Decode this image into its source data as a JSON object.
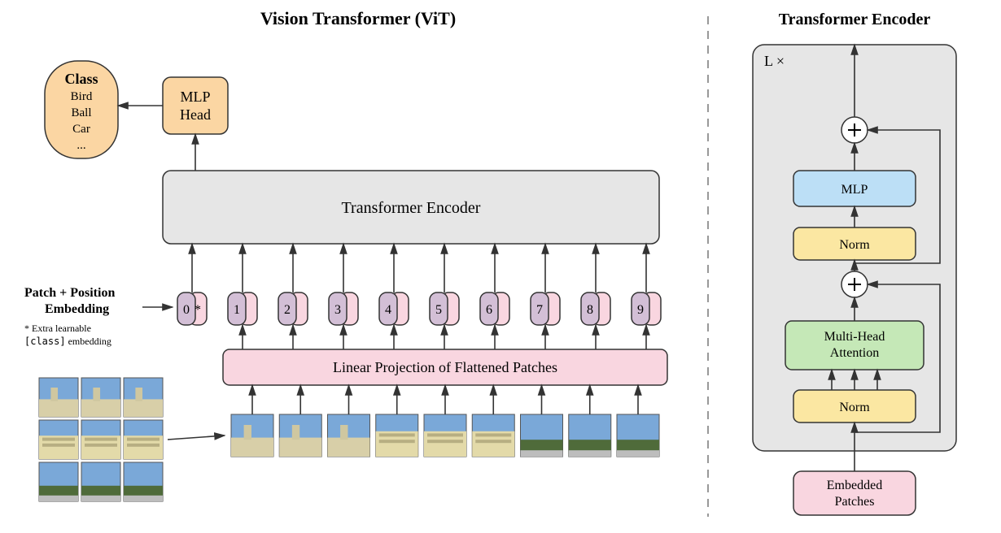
{
  "left": {
    "title": "Vision Transformer (ViT)",
    "class_box": {
      "title": "Class",
      "items": [
        "Bird",
        "Ball",
        "Car",
        "..."
      ],
      "fill": "#fbd6a3",
      "stroke": "#333333"
    },
    "mlp_head": {
      "line1": "MLP",
      "line2": "Head",
      "fill": "#fbd6a3",
      "stroke": "#333333"
    },
    "encoder_box": {
      "label": "Transformer Encoder",
      "fill": "#e6e6e6",
      "stroke": "#333333"
    },
    "patch_embed_label": {
      "line1": "Patch + Position",
      "line2": "Embedding",
      "footnote1": "* Extra learnable",
      "footnote2_pre": "[class]",
      "footnote2_post": " embedding"
    },
    "tokens": {
      "count": 10,
      "pos_color": "#f9d6e0",
      "patch_color": "#d3bfd6",
      "stroke": "#333333",
      "star_label": "*",
      "numbers": [
        "0",
        "1",
        "2",
        "3",
        "4",
        "5",
        "6",
        "7",
        "8",
        "9"
      ]
    },
    "linear_proj": {
      "label": "Linear Projection of Flattened Patches",
      "fill": "#f9d6e0",
      "stroke": "#333333"
    },
    "grid": {
      "rows": 3,
      "cols": 3,
      "cell": 48,
      "gap": 4
    },
    "patch_row": {
      "count": 9,
      "w": 52,
      "h": 52,
      "gap": 10
    }
  },
  "right": {
    "title": "Transformer Encoder",
    "outer_fill": "#e6e6e6",
    "outer_stroke": "#333333",
    "lx_label": "L ×",
    "mlp": {
      "label": "MLP",
      "fill": "#bcdff6",
      "stroke": "#333333"
    },
    "norm": {
      "label": "Norm",
      "fill": "#fbe7a2",
      "stroke": "#333333"
    },
    "mha": {
      "line1": "Multi-Head",
      "line2": "Attention",
      "fill": "#c5e8b7",
      "stroke": "#333333"
    },
    "embedded": {
      "line1": "Embedded",
      "line2": "Patches",
      "fill": "#f9d6e0",
      "stroke": "#333333"
    },
    "plus_fill": "#ffffff",
    "plus_stroke": "#333333"
  },
  "divider_color": "#999999",
  "arrow_color": "#333333"
}
